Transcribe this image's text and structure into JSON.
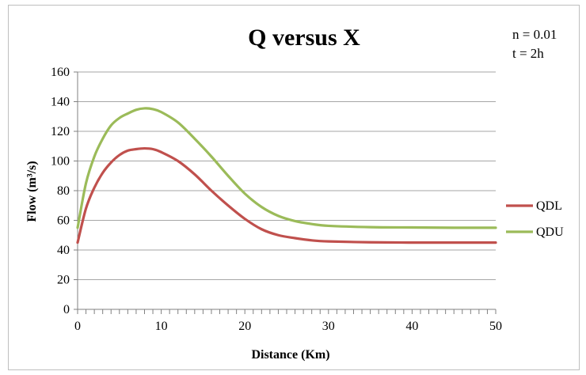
{
  "chart_data": {
    "type": "line",
    "title": "Q versus X",
    "annotations": [
      "n = 0.01",
      "t = 2h"
    ],
    "xlabel": "Distance (Km)",
    "ylabel": "Flow (m³/s)",
    "xlim": [
      0,
      50
    ],
    "ylim": [
      0,
      160
    ],
    "xticks": [
      0,
      10,
      20,
      30,
      40,
      50
    ],
    "yticks": [
      0,
      20,
      40,
      60,
      80,
      100,
      120,
      140,
      160
    ],
    "grid": "horizontal",
    "legend_position": "right",
    "x": [
      0,
      1,
      2,
      3,
      4,
      5,
      6,
      7,
      8,
      9,
      10,
      12,
      14,
      16,
      18,
      20,
      22,
      24,
      26,
      28,
      30,
      35,
      40,
      45,
      50
    ],
    "series": [
      {
        "name": "QDL",
        "color": "#c0504d",
        "values": [
          45,
          68,
          82,
          92,
          99,
          104,
          107,
          108,
          108.5,
          108,
          106,
          100,
          91,
          80,
          70,
          61,
          54,
          50,
          48,
          46.5,
          45.8,
          45.2,
          45,
          45,
          45
        ]
      },
      {
        "name": "QDU",
        "color": "#9bbb59",
        "values": [
          55,
          85,
          103,
          115,
          124,
          129,
          132,
          134.5,
          135.5,
          135,
          133,
          126,
          115,
          103,
          90,
          78,
          69,
          63,
          59.5,
          57.5,
          56.3,
          55.4,
          55.2,
          55,
          55
        ]
      }
    ]
  }
}
